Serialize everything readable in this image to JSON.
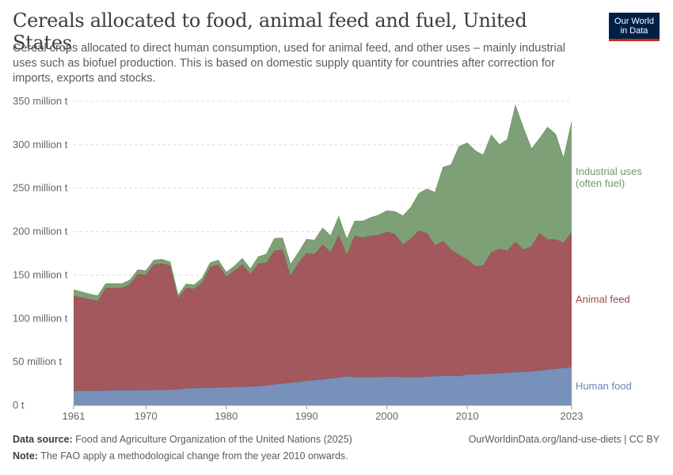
{
  "header": {
    "title": "Cereals allocated to food, animal feed and fuel, United States",
    "subtitle": "Cereal crops allocated to direct human consumption, used for animal feed, and other uses – mainly industrial uses such as biofuel production. This is based on domestic supply quantity for countries after correction for imports, exports and stocks.",
    "logo_line1": "Our World",
    "logo_line2": "in Data"
  },
  "footer": {
    "source_label": "Data source:",
    "source_text": "Food and Agriculture Organization of the United Nations (2025)",
    "url": "OurWorldinData.org/land-use-diets | CC BY",
    "note_label": "Note:",
    "note_text": "The FAO apply a methodological change from the year 2010 onwards."
  },
  "colors": {
    "human_food": "#6d88b4",
    "animal_feed": "#9b4a4f",
    "industrial": "#73986a",
    "grid": "#dddddd",
    "axis": "#999999"
  },
  "chart_data": {
    "type": "area",
    "stacked": true,
    "x_ticks": [
      "1961",
      "1970",
      "1980",
      "1990",
      "2000",
      "2010",
      "2023"
    ],
    "y_ticks": [
      "0 t",
      "50 million t",
      "100 million t",
      "150 million t",
      "200 million t",
      "250 million t",
      "300 million t",
      "350 million t"
    ],
    "ylim": [
      0,
      350000000
    ],
    "xlim": [
      1961,
      2023
    ],
    "grid": "horizontal dashed",
    "legend": "inline labels at right",
    "x": [
      1961,
      1962,
      1963,
      1964,
      1965,
      1966,
      1967,
      1968,
      1969,
      1970,
      1971,
      1972,
      1973,
      1974,
      1975,
      1976,
      1977,
      1978,
      1979,
      1980,
      1981,
      1982,
      1983,
      1984,
      1985,
      1986,
      1987,
      1988,
      1989,
      1990,
      1991,
      1992,
      1993,
      1994,
      1995,
      1996,
      1997,
      1998,
      1999,
      2000,
      2001,
      2002,
      2003,
      2004,
      2005,
      2006,
      2007,
      2008,
      2009,
      2010,
      2011,
      2012,
      2013,
      2014,
      2015,
      2016,
      2017,
      2018,
      2019,
      2020,
      2021,
      2022,
      2023
    ],
    "series": [
      {
        "name": "Human food",
        "color": "#6d88b4",
        "values": [
          16.5,
          16.6,
          16.7,
          16.8,
          17.0,
          17.2,
          17.4,
          17.4,
          17.5,
          17.5,
          17.6,
          17.8,
          18.0,
          18.5,
          19.5,
          19.8,
          20.0,
          20.2,
          20.5,
          20.8,
          21.0,
          21.3,
          21.6,
          22.0,
          23.0,
          24.0,
          25.0,
          26.0,
          27.0,
          28.0,
          29.0,
          30.0,
          31.0,
          32.0,
          33.5,
          32.5,
          32.5,
          32.5,
          32.5,
          33.0,
          33.0,
          32.5,
          32.5,
          32.5,
          33.0,
          33.5,
          34.0,
          34.0,
          33.5,
          35.5,
          35.5,
          36.0,
          36.5,
          37.0,
          37.5,
          38.0,
          38.5,
          39.0,
          40.0,
          41.0,
          42.0,
          43.0,
          44.0
        ]
      },
      {
        "name": "Animal feed",
        "color": "#9b4a4f",
        "values": [
          109.5,
          107.4,
          105.3,
          103.2,
          118.0,
          117.8,
          117.6,
          121.6,
          133.5,
          132.5,
          144.4,
          145.2,
          143.0,
          104.5,
          115.5,
          114.2,
          121.0,
          138.8,
          141.5,
          127.2,
          134.0,
          140.7,
          129.4,
          141.0,
          141.0,
          154.0,
          154.0,
          123.0,
          137.0,
          147.0,
          145.0,
          155.0,
          145.0,
          164.0,
          139.5,
          162.5,
          160.5,
          162.5,
          163.5,
          167.0,
          164.0,
          152.5,
          159.5,
          168.5,
          165.0,
          150.5,
          155.0,
          145.0,
          139.5,
          132.5,
          124.5,
          125.0,
          139.5,
          143.0,
          140.5,
          150.0,
          140.5,
          144.0,
          158.0,
          150.0,
          149.0,
          144.0,
          155.0
        ]
      },
      {
        "name": "Industrial uses (often fuel)",
        "color": "#73986a",
        "values": [
          7.0,
          6.5,
          6.0,
          6.0,
          5.0,
          5.0,
          5.0,
          5.0,
          5.0,
          5.0,
          5.0,
          5.0,
          4.0,
          3.5,
          4.5,
          4.5,
          5.0,
          5.0,
          5.0,
          5.0,
          5.0,
          7.0,
          6.0,
          8.0,
          10.0,
          14.0,
          13.5,
          13.0,
          12.0,
          16.0,
          16.0,
          19.0,
          19.0,
          21.0,
          18.0,
          17.0,
          19.0,
          21.0,
          23.0,
          24.0,
          26.0,
          33.0,
          36.0,
          43.0,
          51.0,
          61.0,
          85.0,
          98.0,
          125.0,
          134.0,
          133.0,
          127.0,
          135.0,
          120.0,
          128.0,
          157.0,
          140.0,
          112.0,
          109.0,
          129.0,
          121.0,
          97.0,
          127.0
        ]
      }
    ],
    "units": "million t"
  }
}
